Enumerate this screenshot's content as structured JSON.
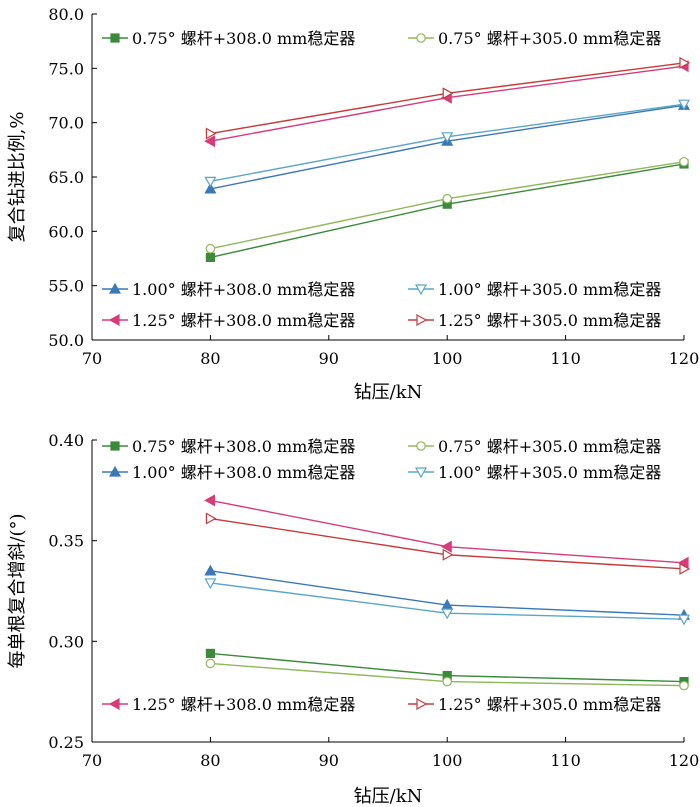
{
  "chart_data": [
    {
      "type": "line",
      "title": "",
      "xlabel": "钻压/kN",
      "ylabel": "复合钻进比例,%",
      "xlim": [
        70,
        120
      ],
      "ylim": [
        50.0,
        80.0
      ],
      "xticks": [
        "70",
        "80",
        "90",
        "100",
        "110",
        "120"
      ],
      "yticks": [
        "50.0",
        "55.0",
        "60.0",
        "65.0",
        "70.0",
        "75.0",
        "80.0"
      ],
      "x": [
        80,
        100,
        120
      ],
      "grid": false,
      "legend_groups": [
        {
          "placement": "top",
          "series_indices": [
            0,
            1
          ]
        },
        {
          "placement": "lower-middle",
          "series_indices": [
            2,
            3,
            4,
            5
          ]
        }
      ],
      "series": [
        {
          "name": "0.75° 螺杆+308.0 mm稳定器",
          "values": [
            57.6,
            62.5,
            66.2
          ],
          "color": "#3a8a3a",
          "marker": "square-filled"
        },
        {
          "name": "0.75° 螺杆+305.0 mm稳定器",
          "values": [
            58.4,
            63.0,
            66.4
          ],
          "color": "#8fb85a",
          "marker": "circle-open"
        },
        {
          "name": "1.00° 螺杆+308.0 mm稳定器",
          "values": [
            63.9,
            68.3,
            71.6
          ],
          "color": "#3a78b8",
          "marker": "triangle-up-filled"
        },
        {
          "name": "1.00° 螺杆+305.0 mm稳定器",
          "values": [
            64.6,
            68.7,
            71.7
          ],
          "color": "#5aa6c8",
          "marker": "triangle-down-open"
        },
        {
          "name": "1.25° 螺杆+308.0 mm稳定器",
          "values": [
            68.3,
            72.3,
            75.2
          ],
          "color": "#d83a7a",
          "marker": "triangle-left-filled"
        },
        {
          "name": "1.25° 螺杆+305.0 mm稳定器",
          "values": [
            69.0,
            72.7,
            75.5
          ],
          "color": "#c83a3a",
          "marker": "triangle-right-open"
        }
      ]
    },
    {
      "type": "line",
      "title": "",
      "xlabel": "钻压/kN",
      "ylabel": "每单根复合增斜/(°)",
      "xlim": [
        70,
        120
      ],
      "ylim": [
        0.25,
        0.4
      ],
      "xticks": [
        "70",
        "80",
        "90",
        "100",
        "110",
        "120"
      ],
      "yticks": [
        "0.25",
        "0.30",
        "0.35",
        "0.40"
      ],
      "x": [
        80,
        100,
        120
      ],
      "grid": false,
      "legend_groups": [
        {
          "placement": "top",
          "series_indices": [
            0,
            1,
            2,
            3
          ]
        },
        {
          "placement": "bottom",
          "series_indices": [
            4,
            5
          ]
        }
      ],
      "series": [
        {
          "name": "0.75° 螺杆+308.0 mm稳定器",
          "values": [
            0.294,
            0.283,
            0.28
          ],
          "color": "#3a8a3a",
          "marker": "square-filled"
        },
        {
          "name": "0.75° 螺杆+305.0 mm稳定器",
          "values": [
            0.289,
            0.28,
            0.278
          ],
          "color": "#8fb85a",
          "marker": "circle-open"
        },
        {
          "name": "1.00° 螺杆+308.0 mm稳定器",
          "values": [
            0.335,
            0.318,
            0.313
          ],
          "color": "#3a78b8",
          "marker": "triangle-up-filled"
        },
        {
          "name": "1.00° 螺杆+305.0 mm稳定器",
          "values": [
            0.329,
            0.314,
            0.311
          ],
          "color": "#5aa6c8",
          "marker": "triangle-down-open"
        },
        {
          "name": "1.25° 螺杆+308.0 mm稳定器",
          "values": [
            0.37,
            0.347,
            0.339
          ],
          "color": "#d83a7a",
          "marker": "triangle-left-filled"
        },
        {
          "name": "1.25° 螺杆+305.0 mm稳定器",
          "values": [
            0.361,
            0.343,
            0.336
          ],
          "color": "#c83a3a",
          "marker": "triangle-right-open"
        }
      ]
    }
  ]
}
